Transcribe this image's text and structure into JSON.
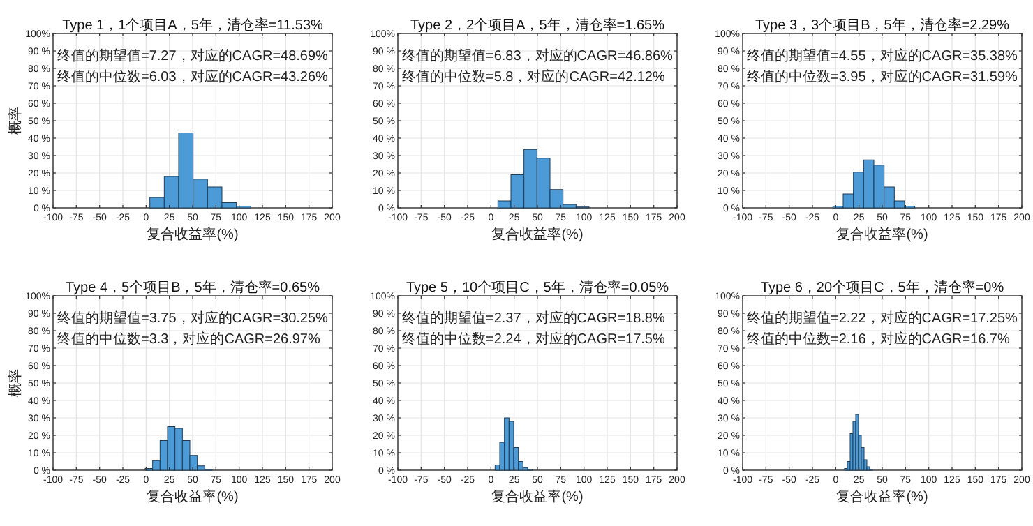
{
  "chart_data": [
    {
      "type": "histogram",
      "title": "Type 1，1个项目A，5年，清仓率=11.53%",
      "annotations": [
        "终值的期望值=7.27，对应的CAGR=48.69%",
        "终值的中位数=6.03，对应的CAGR=43.26%"
      ],
      "xlabel": "复合收益率(%)",
      "ylabel": "概率",
      "bins": [
        4,
        19.5,
        35,
        50.5,
        66,
        81.5,
        97,
        112.5
      ],
      "values": [
        6,
        18,
        43,
        16.5,
        12,
        3,
        1
      ],
      "color": "#4d9bd6",
      "xlim": [
        -100,
        200
      ],
      "xticks": [
        -100,
        -75,
        -50,
        -25,
        0,
        25,
        50,
        75,
        100,
        125,
        150,
        175,
        200
      ],
      "ylim": [
        0,
        100
      ],
      "yticks": [
        {
          "value": 0,
          "label": "0 %"
        },
        {
          "value": 10,
          "label": "10 %"
        },
        {
          "value": 20,
          "label": "20 %"
        },
        {
          "value": 30,
          "label": "30 %"
        },
        {
          "value": 40,
          "label": "40 %"
        },
        {
          "value": 50,
          "label": "50 %"
        },
        {
          "value": 60,
          "label": "60 %"
        },
        {
          "value": 70,
          "label": "70 %"
        },
        {
          "value": 80,
          "label": "80 %"
        },
        {
          "value": 90,
          "label": "90 %"
        },
        {
          "value": 100,
          "label": "100%"
        }
      ],
      "grid": true
    },
    {
      "type": "histogram",
      "title": "Type 2，2个项目A，5年，清仓率=1.65%",
      "annotations": [
        "终值的期望值=6.83，对应的CAGR=46.86%",
        "终值的中位数=5.8，对应的CAGR=42.12%"
      ],
      "xlabel": "复合收益率(%)",
      "bins": [
        7.5,
        21.5,
        35.5,
        49.5,
        63.5,
        77.5,
        91.5,
        105.5
      ],
      "values": [
        4,
        19,
        33.5,
        28.5,
        10.5,
        2,
        0.5
      ],
      "color": "#4d9bd6",
      "xlim": [
        -100,
        200
      ],
      "xticks": [
        -100,
        -75,
        -50,
        -25,
        0,
        25,
        50,
        75,
        100,
        125,
        150,
        175,
        200
      ],
      "ylim": [
        0,
        100
      ],
      "yticks": [
        {
          "value": 0,
          "label": "0 %"
        },
        {
          "value": 10,
          "label": "10 %"
        },
        {
          "value": 20,
          "label": "20 %"
        },
        {
          "value": 30,
          "label": "30 %"
        },
        {
          "value": 40,
          "label": "40 %"
        },
        {
          "value": 50,
          "label": "50 %"
        },
        {
          "value": 60,
          "label": "60 %"
        },
        {
          "value": 70,
          "label": "70 %"
        },
        {
          "value": 80,
          "label": "80 %"
        },
        {
          "value": 90,
          "label": "90 %"
        },
        {
          "value": 100,
          "label": "100%"
        }
      ],
      "grid": true
    },
    {
      "type": "histogram",
      "title": "Type 3，3个项目B，5年，清仓率=2.29%",
      "annotations": [
        "终值的期望值=4.55，对应的CAGR=35.38%",
        "终值的中位数=3.95，对应的CAGR=31.59%"
      ],
      "xlabel": "复合收益率(%)",
      "bins": [
        -3,
        8,
        19,
        30,
        41,
        52,
        63,
        74,
        85
      ],
      "values": [
        1,
        8,
        20.5,
        27.5,
        24.5,
        12,
        4,
        1
      ],
      "color": "#4d9bd6",
      "xlim": [
        -100,
        200
      ],
      "xticks": [
        -100,
        -75,
        -50,
        -25,
        0,
        25,
        50,
        75,
        100,
        125,
        150,
        175,
        200
      ],
      "ylim": [
        0,
        100
      ],
      "yticks": [
        {
          "value": 0,
          "label": "0 %"
        },
        {
          "value": 10,
          "label": "10 %"
        },
        {
          "value": 20,
          "label": "20 %"
        },
        {
          "value": 30,
          "label": "30 %"
        },
        {
          "value": 40,
          "label": "40 %"
        },
        {
          "value": 50,
          "label": "50 %"
        },
        {
          "value": 60,
          "label": "60 %"
        },
        {
          "value": 70,
          "label": "70 %"
        },
        {
          "value": 80,
          "label": "80 %"
        },
        {
          "value": 90,
          "label": "90 %"
        },
        {
          "value": 100,
          "label": "100%"
        }
      ],
      "grid": true
    },
    {
      "type": "histogram",
      "title": "Type 4，5个项目B，5年，清仓率=0.65%",
      "annotations": [
        "终值的期望值=3.75，对应的CAGR=30.25%",
        "终值的中位数=3.3，对应的CAGR=26.97%"
      ],
      "xlabel": "复合收益率(%)",
      "ylabel": "概率",
      "bins": [
        -1,
        7,
        15,
        23,
        31,
        39,
        47,
        55,
        63,
        71
      ],
      "values": [
        1,
        5.5,
        17,
        25,
        24,
        17,
        8.5,
        2.5,
        0.5
      ],
      "color": "#4d9bd6",
      "xlim": [
        -100,
        200
      ],
      "xticks": [
        -100,
        -75,
        -50,
        -25,
        0,
        25,
        50,
        75,
        100,
        125,
        150,
        175,
        200
      ],
      "ylim": [
        0,
        100
      ],
      "yticks": [
        {
          "value": 0,
          "label": "0 %"
        },
        {
          "value": 10,
          "label": "10 %"
        },
        {
          "value": 20,
          "label": "20 %"
        },
        {
          "value": 30,
          "label": "30 %"
        },
        {
          "value": 40,
          "label": "40 %"
        },
        {
          "value": 50,
          "label": "50 %"
        },
        {
          "value": 60,
          "label": "60 %"
        },
        {
          "value": 70,
          "label": "70 %"
        },
        {
          "value": 80,
          "label": "80 %"
        },
        {
          "value": 90,
          "label": "90 %"
        },
        {
          "value": 100,
          "label": "100%"
        }
      ],
      "grid": true
    },
    {
      "type": "histogram",
      "title": "Type 5，10个项目C，5年，清仓率=0.05%",
      "annotations": [
        "终值的期望值=2.37，对应的CAGR=18.8%",
        "终值的中位数=2.24，对应的CAGR=17.5%"
      ],
      "xlabel": "复合收益率(%)",
      "bins": [
        4.5,
        9.5,
        14.5,
        19.5,
        24.5,
        29.5,
        34.5,
        39.5,
        44.5
      ],
      "values": [
        3,
        16,
        30,
        28,
        13,
        5,
        1.5,
        0.5
      ],
      "color": "#4d9bd6",
      "xlim": [
        -100,
        200
      ],
      "xticks": [
        -100,
        -75,
        -50,
        -25,
        0,
        25,
        50,
        75,
        100,
        125,
        150,
        175,
        200
      ],
      "ylim": [
        0,
        100
      ],
      "yticks": [
        {
          "value": 0,
          "label": "0 %"
        },
        {
          "value": 10,
          "label": "10 %"
        },
        {
          "value": 20,
          "label": "20 %"
        },
        {
          "value": 30,
          "label": "30 %"
        },
        {
          "value": 40,
          "label": "40 %"
        },
        {
          "value": 50,
          "label": "50 %"
        },
        {
          "value": 60,
          "label": "60 %"
        },
        {
          "value": 70,
          "label": "70 %"
        },
        {
          "value": 80,
          "label": "80 %"
        },
        {
          "value": 90,
          "label": "90 %"
        },
        {
          "value": 100,
          "label": "100%"
        }
      ],
      "grid": true
    },
    {
      "type": "histogram",
      "title": "Type 6，20个项目C，5年，清仓率=0%",
      "annotations": [
        "终值的期望值=2.22，对应的CAGR=17.25%",
        "终值的中位数=2.16，对应的CAGR=16.7%"
      ],
      "xlabel": "复合收益率(%)",
      "bins": [
        9.5,
        12.5,
        15.5,
        18.5,
        21.5,
        24.5,
        27.5,
        30.5,
        33.5,
        36.5,
        39.5
      ],
      "values": [
        1,
        5,
        21,
        28,
        32,
        20,
        13,
        6,
        2,
        0.5
      ],
      "color": "#4d9bd6",
      "xlim": [
        -100,
        200
      ],
      "xticks": [
        -100,
        -75,
        -50,
        -25,
        0,
        25,
        50,
        75,
        100,
        125,
        150,
        175,
        200
      ],
      "ylim": [
        0,
        100
      ],
      "yticks": [
        {
          "value": 0,
          "label": "0 %"
        },
        {
          "value": 10,
          "label": "10 %"
        },
        {
          "value": 20,
          "label": "20 %"
        },
        {
          "value": 30,
          "label": "30 %"
        },
        {
          "value": 40,
          "label": "40 %"
        },
        {
          "value": 50,
          "label": "50 %"
        },
        {
          "value": 60,
          "label": "60 %"
        },
        {
          "value": 70,
          "label": "70 %"
        },
        {
          "value": 80,
          "label": "80 %"
        },
        {
          "value": 90,
          "label": "90 %"
        },
        {
          "value": 100,
          "label": "100%"
        }
      ],
      "grid": true
    }
  ]
}
